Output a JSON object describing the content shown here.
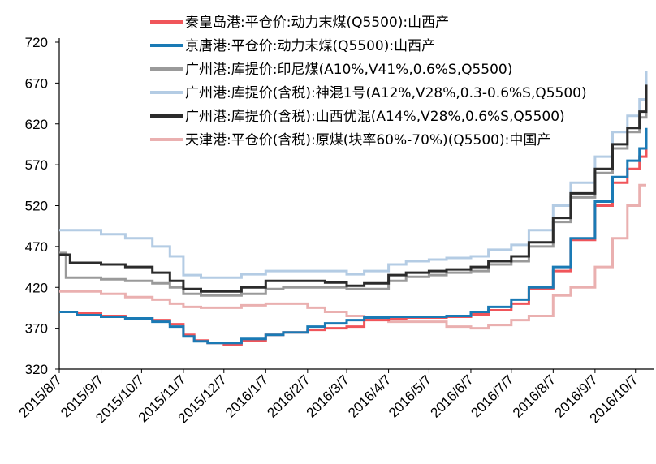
{
  "chart_data": {
    "type": "line",
    "title": "",
    "xlabel": "",
    "ylabel": "",
    "ylim": [
      320,
      720
    ],
    "yticks": [
      320,
      370,
      420,
      470,
      520,
      570,
      620,
      670,
      720
    ],
    "x_tick_labels": [
      "2015/8/7",
      "2015/9/7",
      "2015/10/7",
      "2015/11/7",
      "2015/12/7",
      "2016/1/7",
      "2016/2/7",
      "2016/3/7",
      "2016/4/7",
      "2016/5/7",
      "2016/6/7",
      "2016/7/7",
      "2016/8/7",
      "2016/9/7",
      "2016/10/7"
    ],
    "grid": false,
    "legend_position": "top",
    "series": [
      {
        "name": "秦皇岛港:平仓价:动力末煤(Q5500):山西产",
        "color": "#f0555a",
        "points": [
          [
            "2015/8/7",
            390
          ],
          [
            "2015/8/20",
            388
          ],
          [
            "2015/9/7",
            385
          ],
          [
            "2015/9/25",
            382
          ],
          [
            "2015/10/15",
            380
          ],
          [
            "2015/10/28",
            375
          ],
          [
            "2015/11/7",
            362
          ],
          [
            "2015/11/15",
            355
          ],
          [
            "2015/11/25",
            352
          ],
          [
            "2015/12/7",
            350
          ],
          [
            "2015/12/20",
            355
          ],
          [
            "2016/1/7",
            362
          ],
          [
            "2016/1/20",
            365
          ],
          [
            "2016/2/7",
            368
          ],
          [
            "2016/2/20",
            370
          ],
          [
            "2016/3/7",
            372
          ],
          [
            "2016/3/20",
            380
          ],
          [
            "2016/4/7",
            382
          ],
          [
            "2016/4/20",
            383
          ],
          [
            "2016/5/7",
            383
          ],
          [
            "2016/5/20",
            384
          ],
          [
            "2016/6/7",
            387
          ],
          [
            "2016/6/20",
            392
          ],
          [
            "2016/7/7",
            400
          ],
          [
            "2016/7/20",
            418
          ],
          [
            "2016/8/7",
            440
          ],
          [
            "2016/8/20",
            478
          ],
          [
            "2016/9/7",
            520
          ],
          [
            "2016/9/20",
            548
          ],
          [
            "2016/10/1",
            565
          ],
          [
            "2016/10/10",
            580
          ],
          [
            "2016/10/15",
            605
          ]
        ]
      },
      {
        "name": "京唐港:平仓价:动力末煤(Q5500):山西产",
        "color": "#1a7ab5",
        "points": [
          [
            "2015/8/7",
            390
          ],
          [
            "2015/8/20",
            386
          ],
          [
            "2015/9/7",
            384
          ],
          [
            "2015/9/25",
            382
          ],
          [
            "2015/10/15",
            378
          ],
          [
            "2015/10/28",
            372
          ],
          [
            "2015/11/7",
            360
          ],
          [
            "2015/11/15",
            354
          ],
          [
            "2015/11/25",
            352
          ],
          [
            "2015/12/7",
            352
          ],
          [
            "2015/12/20",
            357
          ],
          [
            "2016/1/7",
            362
          ],
          [
            "2016/1/20",
            365
          ],
          [
            "2016/2/7",
            372
          ],
          [
            "2016/2/20",
            376
          ],
          [
            "2016/3/7",
            380
          ],
          [
            "2016/3/20",
            383
          ],
          [
            "2016/4/7",
            384
          ],
          [
            "2016/4/20",
            384
          ],
          [
            "2016/5/7",
            384
          ],
          [
            "2016/5/20",
            385
          ],
          [
            "2016/6/7",
            390
          ],
          [
            "2016/6/20",
            396
          ],
          [
            "2016/7/7",
            405
          ],
          [
            "2016/7/20",
            420
          ],
          [
            "2016/8/7",
            445
          ],
          [
            "2016/8/20",
            480
          ],
          [
            "2016/9/7",
            525
          ],
          [
            "2016/9/20",
            555
          ],
          [
            "2016/10/1",
            575
          ],
          [
            "2016/10/10",
            590
          ],
          [
            "2016/10/15",
            615
          ]
        ]
      },
      {
        "name": "广州港:库提价:印尼煤(A10%,V41%,0.6%S,Q5500)",
        "color": "#9a9a9a",
        "points": [
          [
            "2015/8/7",
            462
          ],
          [
            "2015/8/12",
            432
          ],
          [
            "2015/9/7",
            430
          ],
          [
            "2015/9/25",
            428
          ],
          [
            "2015/10/15",
            425
          ],
          [
            "2015/10/28",
            420
          ],
          [
            "2015/11/7",
            412
          ],
          [
            "2015/11/20",
            410
          ],
          [
            "2015/12/7",
            410
          ],
          [
            "2015/12/20",
            412
          ],
          [
            "2016/1/7",
            418
          ],
          [
            "2016/1/20",
            420
          ],
          [
            "2016/2/7",
            420
          ],
          [
            "2016/2/20",
            420
          ],
          [
            "2016/3/7",
            418
          ],
          [
            "2016/3/20",
            418
          ],
          [
            "2016/4/7",
            428
          ],
          [
            "2016/4/20",
            433
          ],
          [
            "2016/5/7",
            435
          ],
          [
            "2016/5/20",
            438
          ],
          [
            "2016/6/7",
            440
          ],
          [
            "2016/6/20",
            448
          ],
          [
            "2016/7/7",
            452
          ],
          [
            "2016/7/20",
            470
          ],
          [
            "2016/8/7",
            500
          ],
          [
            "2016/8/20",
            530
          ],
          [
            "2016/9/7",
            560
          ],
          [
            "2016/9/20",
            590
          ],
          [
            "2016/10/1",
            610
          ],
          [
            "2016/10/10",
            628
          ],
          [
            "2016/10/15",
            652
          ]
        ]
      },
      {
        "name": "广州港:库提价(含税):神混1号(A12%,V28%,0.3-0.6%S,Q5500)",
        "color": "#b4cce4",
        "points": [
          [
            "2015/8/7",
            490
          ],
          [
            "2015/8/25",
            490
          ],
          [
            "2015/9/7",
            485
          ],
          [
            "2015/9/25",
            480
          ],
          [
            "2015/10/15",
            470
          ],
          [
            "2015/10/28",
            458
          ],
          [
            "2015/11/7",
            435
          ],
          [
            "2015/11/20",
            432
          ],
          [
            "2015/12/7",
            432
          ],
          [
            "2015/12/20",
            436
          ],
          [
            "2016/1/7",
            440
          ],
          [
            "2016/1/20",
            440
          ],
          [
            "2016/2/7",
            440
          ],
          [
            "2016/2/20",
            440
          ],
          [
            "2016/3/7",
            436
          ],
          [
            "2016/3/20",
            440
          ],
          [
            "2016/4/7",
            448
          ],
          [
            "2016/4/20",
            452
          ],
          [
            "2016/5/7",
            454
          ],
          [
            "2016/5/20",
            456
          ],
          [
            "2016/6/7",
            458
          ],
          [
            "2016/6/20",
            466
          ],
          [
            "2016/7/7",
            472
          ],
          [
            "2016/7/20",
            490
          ],
          [
            "2016/8/7",
            520
          ],
          [
            "2016/8/20",
            548
          ],
          [
            "2016/9/7",
            580
          ],
          [
            "2016/9/20",
            610
          ],
          [
            "2016/10/1",
            630
          ],
          [
            "2016/10/10",
            650
          ],
          [
            "2016/10/15",
            685
          ]
        ]
      },
      {
        "name": "广州港:库提价(含税):山西优混(A14%,V28%,0.6%S,Q5500)",
        "color": "#2b2b2b",
        "points": [
          [
            "2015/8/7",
            460
          ],
          [
            "2015/8/15",
            450
          ],
          [
            "2015/9/7",
            448
          ],
          [
            "2015/9/25",
            445
          ],
          [
            "2015/10/15",
            438
          ],
          [
            "2015/10/28",
            428
          ],
          [
            "2015/11/7",
            418
          ],
          [
            "2015/11/20",
            415
          ],
          [
            "2015/12/7",
            415
          ],
          [
            "2015/12/20",
            420
          ],
          [
            "2016/1/7",
            428
          ],
          [
            "2016/1/20",
            428
          ],
          [
            "2016/2/7",
            428
          ],
          [
            "2016/2/20",
            426
          ],
          [
            "2016/3/7",
            422
          ],
          [
            "2016/3/20",
            425
          ],
          [
            "2016/4/7",
            435
          ],
          [
            "2016/4/20",
            438
          ],
          [
            "2016/5/7",
            440
          ],
          [
            "2016/5/20",
            442
          ],
          [
            "2016/6/7",
            445
          ],
          [
            "2016/6/20",
            452
          ],
          [
            "2016/7/7",
            458
          ],
          [
            "2016/7/20",
            475
          ],
          [
            "2016/8/7",
            505
          ],
          [
            "2016/8/20",
            535
          ],
          [
            "2016/9/7",
            565
          ],
          [
            "2016/9/20",
            595
          ],
          [
            "2016/10/1",
            615
          ],
          [
            "2016/10/10",
            635
          ],
          [
            "2016/10/15",
            668
          ]
        ]
      },
      {
        "name": "天津港:平仓价(含税):原煤(块率60%-70%)(Q5500):中国产",
        "color": "#eab0b0",
        "points": [
          [
            "2015/8/7",
            415
          ],
          [
            "2015/8/25",
            415
          ],
          [
            "2015/9/7",
            412
          ],
          [
            "2015/9/25",
            408
          ],
          [
            "2015/10/15",
            405
          ],
          [
            "2015/10/28",
            400
          ],
          [
            "2015/11/7",
            396
          ],
          [
            "2015/11/20",
            395
          ],
          [
            "2015/12/7",
            395
          ],
          [
            "2015/12/20",
            398
          ],
          [
            "2016/1/7",
            400
          ],
          [
            "2016/1/20",
            400
          ],
          [
            "2016/2/7",
            395
          ],
          [
            "2016/2/20",
            390
          ],
          [
            "2016/3/7",
            385
          ],
          [
            "2016/3/20",
            382
          ],
          [
            "2016/4/7",
            378
          ],
          [
            "2016/4/20",
            378
          ],
          [
            "2016/5/7",
            378
          ],
          [
            "2016/5/20",
            372
          ],
          [
            "2016/6/7",
            370
          ],
          [
            "2016/6/20",
            374
          ],
          [
            "2016/7/7",
            380
          ],
          [
            "2016/7/20",
            385
          ],
          [
            "2016/8/7",
            410
          ],
          [
            "2016/8/20",
            420
          ],
          [
            "2016/9/7",
            445
          ],
          [
            "2016/9/20",
            480
          ],
          [
            "2016/10/1",
            520
          ],
          [
            "2016/10/10",
            545
          ],
          [
            "2016/10/15",
            545
          ]
        ]
      }
    ]
  }
}
